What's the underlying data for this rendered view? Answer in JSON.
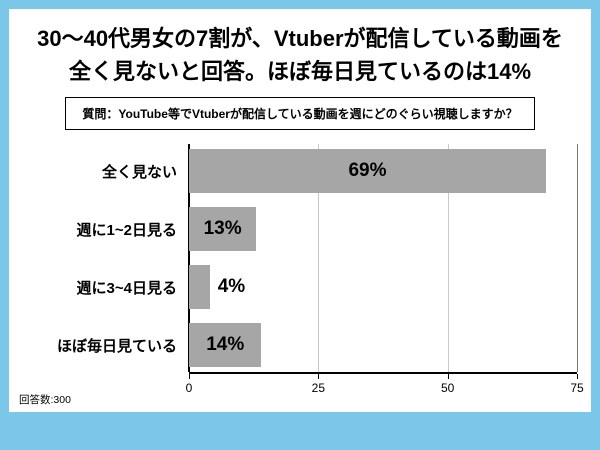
{
  "header": {
    "title_line1": "30〜40代男女の7割が、Vtuberが配信している動画を",
    "title_line2": "全く見ないと回答。ほぼ毎日見ているのは14%"
  },
  "question": {
    "text": "質問：YouTube等でVtuberが配信している動画を週にどのぐらい視聴しますか？"
  },
  "footer": {
    "respondents": "回答数:300"
  },
  "colors": {
    "frame_blue": "#7BC7E9",
    "bar_gray": "#A6A6A6",
    "gridline_gray": "#c9c9c9",
    "axis_black": "#000000"
  },
  "chart_data": {
    "type": "bar",
    "orientation": "horizontal",
    "title": "YouTube等でVtuberが配信している動画の週あたり視聴頻度",
    "categories": [
      "全く見ない",
      "週に1~2日見る",
      "週に3~4日見る",
      "ほぼ毎日見ている"
    ],
    "values": [
      69,
      13,
      4,
      14
    ],
    "value_labels": [
      "69%",
      "13%",
      "4%",
      "14%"
    ],
    "xlabel": "",
    "ylabel": "",
    "xlim": [
      0,
      75
    ],
    "xticks": [
      0,
      25,
      50,
      75
    ],
    "grid": true,
    "legend": false
  }
}
